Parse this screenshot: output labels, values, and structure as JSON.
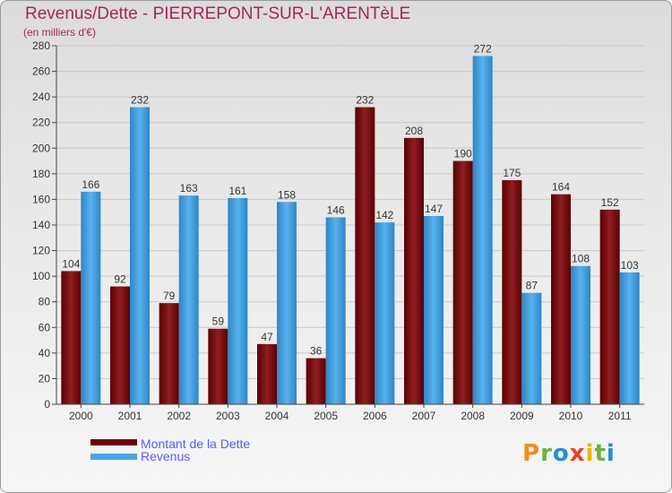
{
  "title": "Revenus/Dette - PIERREPONT-SUR-L'ARENTèLE",
  "subtitle": "(en milliers d'€)",
  "logo_letters": [
    "P",
    "r",
    "o",
    "x",
    "i",
    "t",
    "i"
  ],
  "logo_colors": [
    "#f28c1e",
    "#6cb33f",
    "#1e90d6",
    "#e8412c",
    "#f0b400",
    "#6cb33f",
    "#1e90d6"
  ],
  "legend": [
    {
      "label": "Montant de la Dette",
      "color": "#6e0000"
    },
    {
      "label": "Revenus",
      "color": "#4aa6e6"
    }
  ],
  "chart_data": {
    "type": "bar",
    "title": "Revenus/Dette - PIERREPONT-SUR-L'ARENTèLE",
    "subtitle": "(en milliers d'€)",
    "categories": [
      "2000",
      "2001",
      "2002",
      "2003",
      "2004",
      "2005",
      "2006",
      "2007",
      "2008",
      "2009",
      "2010",
      "2011"
    ],
    "series": [
      {
        "name": "Montant de la Dette",
        "color": "#8b1a1a",
        "values": [
          104,
          92,
          79,
          59,
          47,
          36,
          232,
          208,
          190,
          175,
          164,
          152
        ]
      },
      {
        "name": "Revenus",
        "color": "#4aa6e6",
        "values": [
          166,
          232,
          163,
          161,
          158,
          146,
          142,
          147,
          272,
          87,
          108,
          103
        ]
      }
    ],
    "ylim": [
      0,
      280
    ],
    "yticks": [
      0,
      20,
      40,
      60,
      80,
      100,
      120,
      140,
      160,
      180,
      200,
      220,
      240,
      260,
      280
    ],
    "grid": true,
    "legend_position": "bottom-left"
  }
}
